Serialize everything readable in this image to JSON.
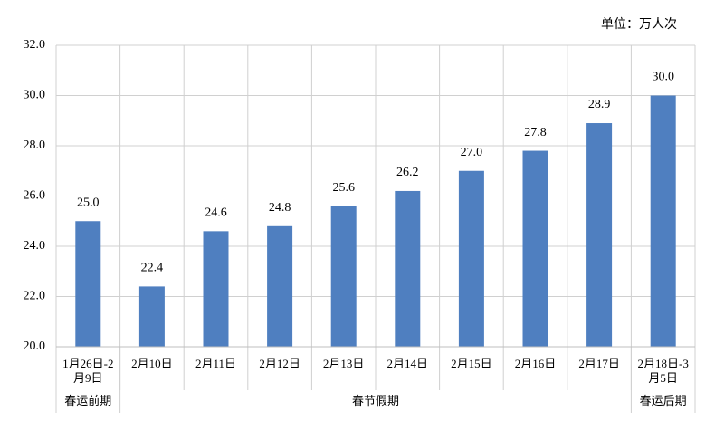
{
  "chart_data": {
    "type": "bar",
    "unit_label": "单位：万人次",
    "categories": [
      "1月26日-2月9日",
      "2月10日",
      "2月11日",
      "2月12日",
      "2月13日",
      "2月14日",
      "2月15日",
      "2月16日",
      "2月17日",
      "2月18日-3月5日"
    ],
    "values": [
      25.0,
      22.4,
      24.6,
      24.8,
      25.6,
      26.2,
      27.0,
      27.8,
      28.9,
      30.0
    ],
    "value_labels": [
      "25.0",
      "22.4",
      "24.6",
      "24.8",
      "25.6",
      "26.2",
      "27.0",
      "27.8",
      "28.9",
      "30.0"
    ],
    "groups": [
      {
        "label": "春运前期",
        "span": 1
      },
      {
        "label": "春节假期",
        "span": 8
      },
      {
        "label": "春运后期",
        "span": 1
      }
    ],
    "color": "#4f7fc0",
    "ylim": [
      20,
      32
    ],
    "yticks": [
      {
        "value": 20,
        "label": "20.0"
      },
      {
        "value": 22,
        "label": "22.0"
      },
      {
        "value": 24,
        "label": "24.0"
      },
      {
        "value": 26,
        "label": "26.0"
      },
      {
        "value": 28,
        "label": "28.0"
      },
      {
        "value": 30,
        "label": "30.0"
      },
      {
        "value": 32,
        "label": "32.0"
      }
    ],
    "grid": true
  }
}
